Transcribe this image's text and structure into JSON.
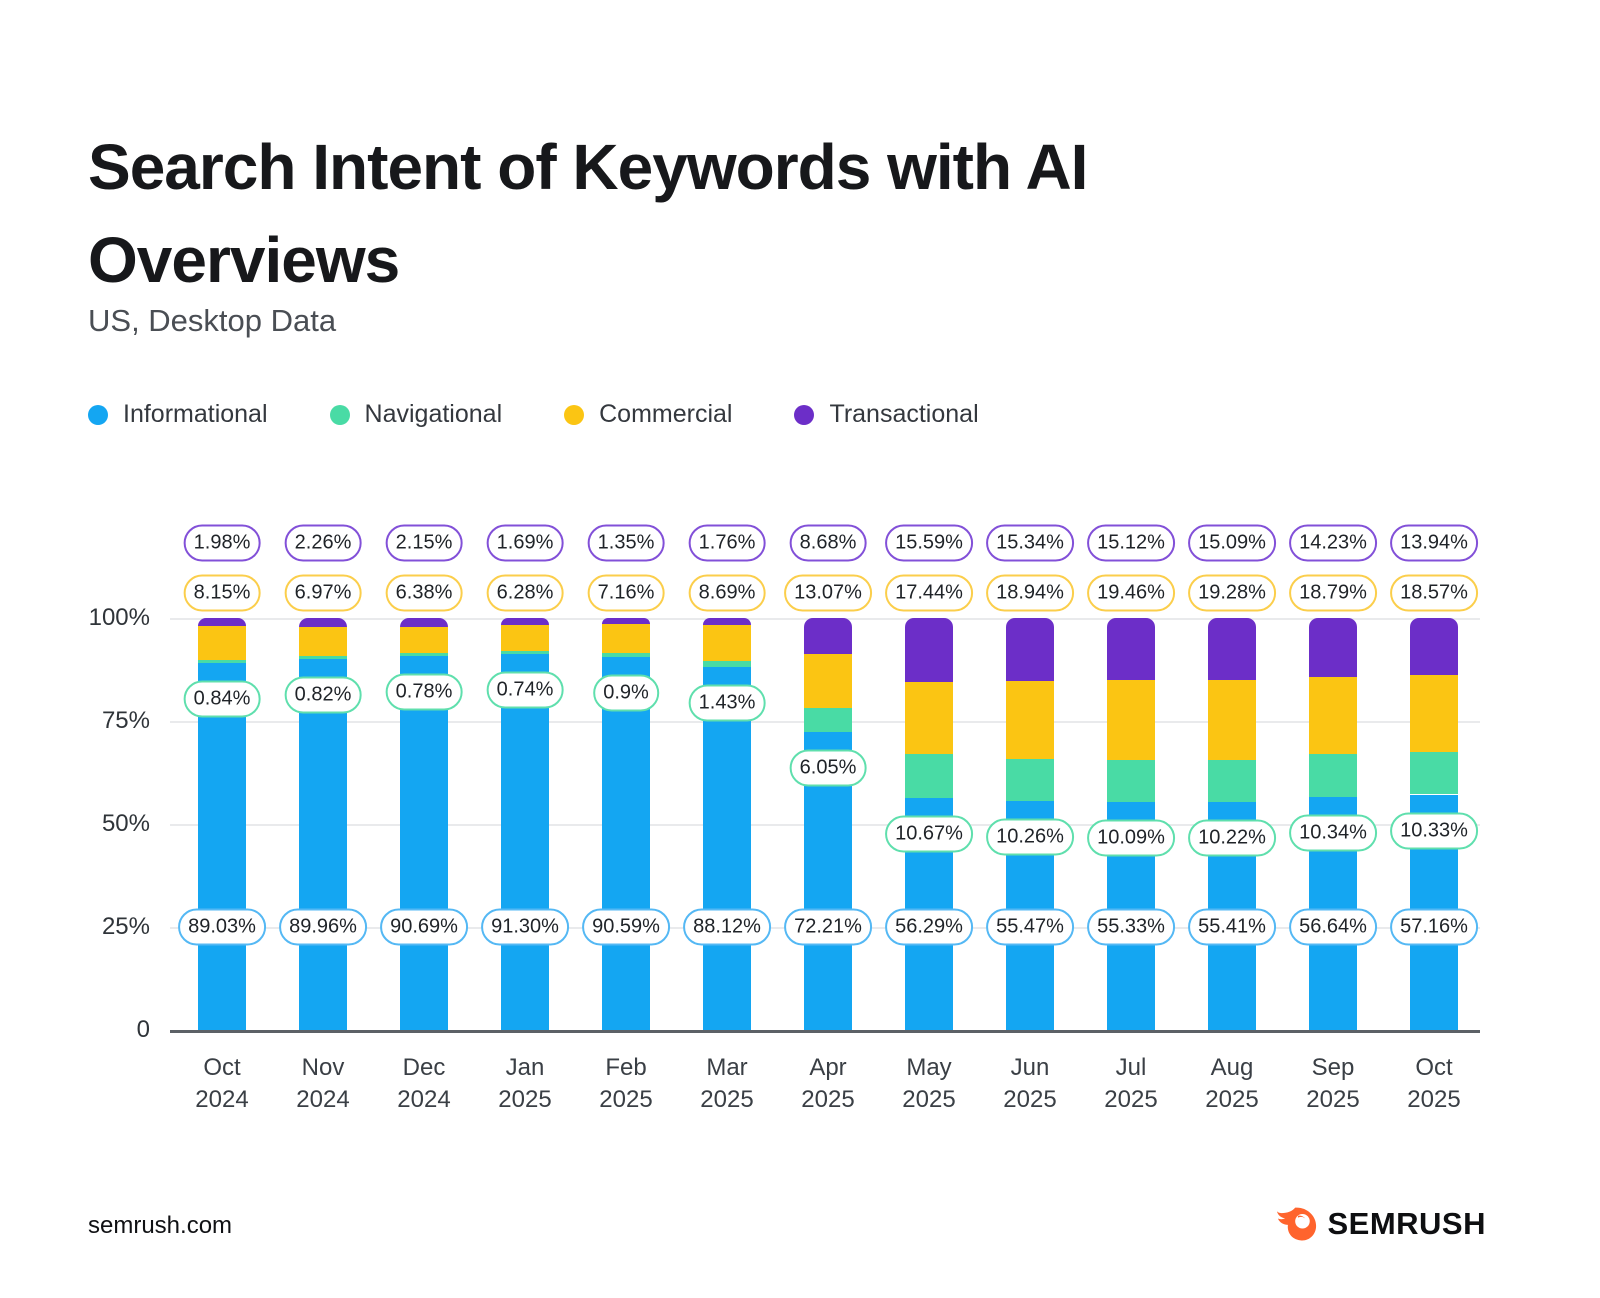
{
  "header": {
    "title": "Search Intent of Keywords with AI Overviews",
    "subtitle": "US, Desktop Data"
  },
  "footer": {
    "site": "semrush.com",
    "brand": "SEMRUSH",
    "brand_color": "#ff642d"
  },
  "chart_data": {
    "type": "bar",
    "stacked": true,
    "grid": true,
    "legend_position": "top",
    "ylim": [
      0,
      100
    ],
    "y_ticks": [
      {
        "value": 0,
        "label": "0"
      },
      {
        "value": 25,
        "label": "25%"
      },
      {
        "value": 50,
        "label": "50%"
      },
      {
        "value": 75,
        "label": "75%"
      },
      {
        "value": 100,
        "label": "100%"
      }
    ],
    "categories": [
      {
        "month": "Oct",
        "year": "2024"
      },
      {
        "month": "Nov",
        "year": "2024"
      },
      {
        "month": "Dec",
        "year": "2024"
      },
      {
        "month": "Jan",
        "year": "2025"
      },
      {
        "month": "Feb",
        "year": "2025"
      },
      {
        "month": "Mar",
        "year": "2025"
      },
      {
        "month": "Apr",
        "year": "2025"
      },
      {
        "month": "May",
        "year": "2025"
      },
      {
        "month": "Jun",
        "year": "2025"
      },
      {
        "month": "Jul",
        "year": "2025"
      },
      {
        "month": "Aug",
        "year": "2025"
      },
      {
        "month": "Sep",
        "year": "2025"
      },
      {
        "month": "Oct",
        "year": "2025"
      }
    ],
    "series": [
      {
        "name": "Informational",
        "key": "informational",
        "color": "#14a6f2",
        "pill_border": "#54b8f4",
        "values": [
          89.03,
          89.96,
          90.69,
          91.3,
          90.59,
          88.12,
          72.21,
          56.29,
          55.47,
          55.33,
          55.41,
          56.64,
          57.16
        ],
        "labels": [
          "89.03%",
          "89.96%",
          "90.69%",
          "91.30%",
          "90.59%",
          "88.12%",
          "72.21%",
          "56.29%",
          "55.47%",
          "55.33%",
          "55.41%",
          "56.64%",
          "57.16%"
        ]
      },
      {
        "name": "Navigational",
        "key": "navigational",
        "color": "#49dba5",
        "pill_border": "#5fdfad",
        "values": [
          0.84,
          0.82,
          0.78,
          0.74,
          0.9,
          1.43,
          6.05,
          10.67,
          10.26,
          10.09,
          10.22,
          10.34,
          10.33
        ],
        "labels": [
          "0.84%",
          "0.82%",
          "0.78%",
          "0.74%",
          "0.9%",
          "1.43%",
          "6.05%",
          "10.67%",
          "10.26%",
          "10.09%",
          "10.22%",
          "10.34%",
          "10.33%"
        ]
      },
      {
        "name": "Commercial",
        "key": "commercial",
        "color": "#fbc513",
        "pill_border": "#fbce4b",
        "values": [
          8.15,
          6.97,
          6.38,
          6.28,
          7.16,
          8.69,
          13.07,
          17.44,
          18.94,
          19.46,
          19.28,
          18.79,
          18.57
        ],
        "labels": [
          "8.15%",
          "6.97%",
          "6.38%",
          "6.28%",
          "7.16%",
          "8.69%",
          "13.07%",
          "17.44%",
          "18.94%",
          "19.46%",
          "19.28%",
          "18.79%",
          "18.57%"
        ]
      },
      {
        "name": "Transactional",
        "key": "transactional",
        "color": "#6c2ec8",
        "pill_border": "#8250d8",
        "values": [
          1.98,
          2.26,
          2.15,
          1.69,
          1.35,
          1.76,
          8.68,
          15.59,
          15.34,
          15.12,
          15.09,
          14.23,
          13.94
        ],
        "labels": [
          "1.98%",
          "2.26%",
          "2.15%",
          "1.69%",
          "1.35%",
          "1.76%",
          "8.68%",
          "15.59%",
          "15.34%",
          "15.12%",
          "15.09%",
          "14.23%",
          "13.94%"
        ]
      }
    ]
  }
}
